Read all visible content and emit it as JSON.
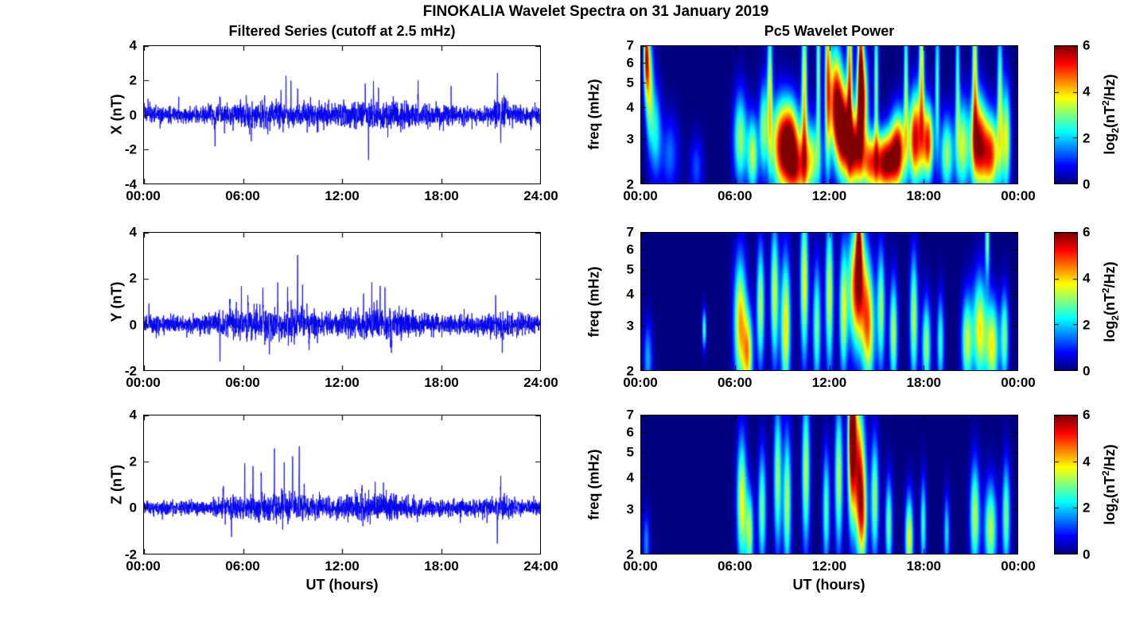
{
  "figure": {
    "title": "FINOKALIA Wavelet Spectra on 31 January 2019",
    "left_column_title": "Filtered Series (cutoff at 2.5 mHz)",
    "right_column_title": "Pc5 Wavelet Power",
    "x_axis_label": "UT (hours)",
    "background": "#FFFFFF"
  },
  "colorbar": {
    "label_prefix": "log",
    "label_sub": "2",
    "label_mid": "(nT",
    "label_sup": "2",
    "label_suffix": "/Hz)",
    "ticks": [
      6,
      4,
      2,
      0
    ],
    "clim": [
      0,
      6
    ],
    "colormap": "jet"
  },
  "colors": {
    "line": "#0000EE",
    "axis": "#000000",
    "heatmap_background": "#00008F"
  },
  "chart_data": [
    {
      "type": "line",
      "name": "X component filtered magnetometer series",
      "ylabel": "X (nT)",
      "xlim": [
        0,
        24
      ],
      "ylim": [
        -4,
        4
      ],
      "xticks": [
        0,
        6,
        12,
        18,
        24
      ],
      "xtick_labels": [
        "00:00",
        "06:00",
        "12:00",
        "18:00",
        "24:00"
      ],
      "yticks": [
        4,
        2,
        0,
        -2,
        -4
      ],
      "line_color": "#0000EE",
      "samples_per_hour": 120,
      "noise_envelope": [
        [
          0,
          0.22
        ],
        [
          3,
          0.22
        ],
        [
          4,
          0.28
        ],
        [
          5,
          0.34
        ],
        [
          7,
          0.36
        ],
        [
          10,
          0.38
        ],
        [
          11,
          0.3
        ],
        [
          12,
          0.34
        ],
        [
          14,
          0.4
        ],
        [
          16,
          0.38
        ],
        [
          17,
          0.3
        ],
        [
          19,
          0.26
        ],
        [
          21,
          0.26
        ],
        [
          21.3,
          0.45
        ],
        [
          21.8,
          0.42
        ],
        [
          22.3,
          0.3
        ],
        [
          24,
          0.26
        ]
      ],
      "spikes": [
        [
          0.25,
          0.9
        ],
        [
          2.1,
          0.8
        ],
        [
          4.3,
          -1.7
        ],
        [
          4.6,
          1.0
        ],
        [
          5.4,
          -1.2
        ],
        [
          6.2,
          1.5
        ],
        [
          6.5,
          -1.1
        ],
        [
          7.3,
          1.3
        ],
        [
          8.3,
          1.5
        ],
        [
          8.6,
          2.6
        ],
        [
          8.9,
          1.2
        ],
        [
          9.3,
          1.4
        ],
        [
          10.1,
          0.9
        ],
        [
          13.4,
          1.5
        ],
        [
          13.6,
          -2.3
        ],
        [
          13.9,
          1.7
        ],
        [
          14.2,
          1.2
        ],
        [
          15.1,
          0.9
        ],
        [
          16.6,
          1.5
        ],
        [
          18.6,
          1.1
        ],
        [
          21.4,
          2.2
        ],
        [
          21.6,
          -1.5
        ],
        [
          21.9,
          1.0
        ]
      ]
    },
    {
      "type": "line",
      "name": "Y component filtered magnetometer series",
      "ylabel": "Y (nT)",
      "xlim": [
        0,
        24
      ],
      "ylim": [
        -2,
        4
      ],
      "xticks": [
        0,
        6,
        12,
        18,
        24
      ],
      "xtick_labels": [
        "00:00",
        "06:00",
        "12:00",
        "18:00",
        "24:00"
      ],
      "yticks": [
        4,
        2,
        0,
        -2
      ],
      "line_color": "#0000EE",
      "samples_per_hour": 120,
      "noise_envelope": [
        [
          0,
          0.18
        ],
        [
          4,
          0.2
        ],
        [
          5,
          0.3
        ],
        [
          6,
          0.34
        ],
        [
          9,
          0.36
        ],
        [
          10,
          0.3
        ],
        [
          12,
          0.26
        ],
        [
          13,
          0.32
        ],
        [
          15,
          0.34
        ],
        [
          16,
          0.28
        ],
        [
          17,
          0.24
        ],
        [
          20,
          0.2
        ],
        [
          21,
          0.24
        ],
        [
          22,
          0.26
        ],
        [
          23,
          0.2
        ],
        [
          24,
          0.18
        ]
      ],
      "spikes": [
        [
          0.3,
          1.0
        ],
        [
          4.6,
          -1.6
        ],
        [
          5.2,
          1.2
        ],
        [
          5.9,
          1.5
        ],
        [
          6.3,
          1.4
        ],
        [
          7.2,
          1.8
        ],
        [
          7.6,
          -1.2
        ],
        [
          8.1,
          1.6
        ],
        [
          8.7,
          1.9
        ],
        [
          9.3,
          2.6
        ],
        [
          9.6,
          1.3
        ],
        [
          10.0,
          -1.1
        ],
        [
          13.3,
          1.1
        ],
        [
          13.8,
          1.5
        ],
        [
          14.3,
          1.7
        ],
        [
          14.6,
          1.2
        ],
        [
          15.0,
          -1.0
        ],
        [
          21.3,
          1.0
        ],
        [
          21.7,
          -1.3
        ]
      ]
    },
    {
      "type": "line",
      "name": "Z component filtered magnetometer series",
      "ylabel": "Z (nT)",
      "xlim": [
        0,
        24
      ],
      "ylim": [
        -2,
        4
      ],
      "xticks": [
        0,
        6,
        12,
        18,
        24
      ],
      "xtick_labels": [
        "00:00",
        "06:00",
        "12:00",
        "18:00",
        "24:00"
      ],
      "yticks": [
        4,
        2,
        0,
        -2
      ],
      "line_color": "#0000EE",
      "samples_per_hour": 120,
      "noise_envelope": [
        [
          0,
          0.15
        ],
        [
          4,
          0.16
        ],
        [
          5,
          0.24
        ],
        [
          6,
          0.28
        ],
        [
          9,
          0.3
        ],
        [
          10,
          0.26
        ],
        [
          12,
          0.22
        ],
        [
          13,
          0.28
        ],
        [
          15,
          0.28
        ],
        [
          16,
          0.22
        ],
        [
          17,
          0.18
        ],
        [
          20,
          0.16
        ],
        [
          21,
          0.22
        ],
        [
          21.8,
          0.3
        ],
        [
          22.5,
          0.18
        ],
        [
          24,
          0.16
        ]
      ],
      "spikes": [
        [
          4.8,
          1.0
        ],
        [
          5.3,
          -1.3
        ],
        [
          6.1,
          1.6
        ],
        [
          6.6,
          1.9
        ],
        [
          7.1,
          1.4
        ],
        [
          7.9,
          2.0
        ],
        [
          8.5,
          1.5
        ],
        [
          9.0,
          2.5
        ],
        [
          9.4,
          2.4
        ],
        [
          9.7,
          1.2
        ],
        [
          13.2,
          0.9
        ],
        [
          14.0,
          0.8
        ],
        [
          14.5,
          1.0
        ],
        [
          21.4,
          -1.5
        ],
        [
          21.6,
          1.2
        ]
      ]
    },
    {
      "type": "heatmap",
      "name": "X component Pc5 wavelet power",
      "ylabel": "freq (mHz)",
      "xlim": [
        0,
        24
      ],
      "ylim": [
        2,
        7
      ],
      "yscale": "log",
      "xticks": [
        0,
        6,
        12,
        18,
        24
      ],
      "xtick_labels": [
        "00:00",
        "06:00",
        "12:00",
        "18:00",
        "00:00"
      ],
      "yticks": [
        7,
        6,
        5,
        4,
        3,
        2
      ],
      "clim": [
        0,
        6
      ],
      "colormap": "jet",
      "blobs": [
        [
          0.3,
          6.5,
          0.12,
          0.25,
          4.6
        ],
        [
          0.5,
          4.8,
          0.18,
          0.35,
          3.2
        ],
        [
          0.9,
          3.2,
          0.25,
          0.3,
          2.2
        ],
        [
          1.8,
          2.6,
          0.4,
          0.25,
          1.4
        ],
        [
          3.5,
          2.3,
          0.3,
          0.2,
          1.2
        ],
        [
          6.3,
          3.0,
          0.3,
          0.3,
          3.2
        ],
        [
          7.1,
          2.6,
          0.25,
          0.25,
          3.4
        ],
        [
          7.8,
          3.3,
          0.2,
          0.3,
          3.0
        ],
        [
          8.2,
          4.8,
          0.12,
          0.5,
          3.4
        ],
        [
          8.8,
          2.8,
          0.4,
          0.3,
          4.2
        ],
        [
          9.5,
          3.0,
          0.4,
          0.25,
          5.2
        ],
        [
          9.8,
          2.2,
          0.5,
          0.2,
          3.6
        ],
        [
          10.4,
          4.8,
          0.13,
          0.55,
          3.8
        ],
        [
          10.8,
          2.5,
          0.5,
          0.25,
          3.4
        ],
        [
          11.3,
          5.5,
          0.1,
          0.5,
          3.2
        ],
        [
          11.9,
          5.3,
          0.13,
          0.6,
          4.0
        ],
        [
          12.4,
          4.2,
          0.3,
          0.35,
          5.4
        ],
        [
          12.9,
          3.2,
          0.3,
          0.3,
          5.8
        ],
        [
          13.3,
          5.6,
          0.12,
          0.55,
          4.4
        ],
        [
          13.6,
          2.7,
          0.35,
          0.25,
          5.6
        ],
        [
          14.0,
          5.9,
          0.12,
          0.5,
          4.2
        ],
        [
          14.1,
          4.4,
          0.25,
          0.3,
          5.0
        ],
        [
          14.6,
          2.4,
          0.4,
          0.2,
          4.4
        ],
        [
          15.0,
          5.0,
          0.1,
          0.5,
          3.2
        ],
        [
          15.6,
          2.4,
          0.45,
          0.2,
          5.8
        ],
        [
          16.4,
          2.7,
          0.35,
          0.25,
          5.4
        ],
        [
          16.9,
          5.2,
          0.1,
          0.5,
          3.0
        ],
        [
          17.5,
          3.0,
          0.3,
          0.3,
          5.6
        ],
        [
          17.9,
          5.8,
          0.12,
          0.5,
          3.8
        ],
        [
          18.3,
          2.9,
          0.25,
          0.25,
          5.2
        ],
        [
          18.9,
          5.0,
          0.1,
          0.45,
          2.8
        ],
        [
          19.5,
          2.6,
          0.3,
          0.25,
          3.2
        ],
        [
          20.2,
          5.4,
          0.1,
          0.45,
          2.6
        ],
        [
          20.5,
          2.8,
          0.3,
          0.3,
          3.4
        ],
        [
          21.3,
          5.9,
          0.12,
          0.5,
          3.6
        ],
        [
          21.5,
          2.9,
          0.35,
          0.3,
          5.4
        ],
        [
          22.3,
          2.6,
          0.4,
          0.25,
          5.0
        ],
        [
          22.9,
          4.5,
          0.12,
          0.5,
          3.0
        ],
        [
          23.3,
          3.0,
          0.2,
          0.35,
          3.6
        ]
      ]
    },
    {
      "type": "heatmap",
      "name": "Y component Pc5 wavelet power",
      "ylabel": "freq (mHz)",
      "xlim": [
        0,
        24
      ],
      "ylim": [
        2,
        7
      ],
      "yscale": "log",
      "xticks": [
        0,
        6,
        12,
        18,
        24
      ],
      "xtick_labels": [
        "00:00",
        "06:00",
        "12:00",
        "18:00",
        "00:00"
      ],
      "yticks": [
        7,
        6,
        5,
        4,
        3,
        2
      ],
      "clim": [
        0,
        6
      ],
      "colormap": "jet",
      "blobs": [
        [
          0.4,
          2.2,
          0.2,
          0.25,
          1.8
        ],
        [
          4.0,
          2.9,
          0.09,
          0.13,
          2.8
        ],
        [
          6.3,
          3.1,
          0.28,
          0.42,
          4.2
        ],
        [
          6.8,
          2.3,
          0.22,
          0.28,
          3.8
        ],
        [
          7.6,
          3.6,
          0.18,
          0.4,
          3.4
        ],
        [
          8.5,
          4.0,
          0.18,
          0.45,
          3.6
        ],
        [
          9.2,
          3.0,
          0.22,
          0.45,
          4.0
        ],
        [
          10.4,
          4.4,
          0.18,
          0.5,
          3.8
        ],
        [
          11.2,
          3.0,
          0.18,
          0.4,
          3.0
        ],
        [
          12.0,
          4.0,
          0.18,
          0.5,
          3.6
        ],
        [
          12.9,
          3.4,
          0.18,
          0.42,
          3.4
        ],
        [
          13.8,
          4.3,
          0.4,
          0.4,
          5.6
        ],
        [
          13.9,
          6.6,
          0.13,
          0.28,
          3.6
        ],
        [
          14.5,
          2.9,
          0.28,
          0.38,
          4.0
        ],
        [
          15.3,
          3.5,
          0.18,
          0.4,
          3.2
        ],
        [
          16.1,
          2.8,
          0.18,
          0.35,
          3.4
        ],
        [
          17.4,
          3.2,
          0.18,
          0.42,
          3.4
        ],
        [
          18.2,
          2.5,
          0.2,
          0.3,
          3.2
        ],
        [
          19.1,
          2.6,
          0.16,
          0.3,
          2.6
        ],
        [
          20.8,
          2.6,
          0.25,
          0.3,
          3.4
        ],
        [
          21.6,
          2.9,
          0.3,
          0.35,
          3.8
        ],
        [
          22.1,
          6.7,
          0.1,
          0.25,
          3.2
        ],
        [
          22.4,
          2.5,
          0.3,
          0.3,
          3.8
        ],
        [
          23.2,
          2.7,
          0.18,
          0.3,
          3.0
        ]
      ]
    },
    {
      "type": "heatmap",
      "name": "Z component Pc5 wavelet power",
      "ylabel": "freq (mHz)",
      "xlim": [
        0,
        24
      ],
      "ylim": [
        2,
        7
      ],
      "yscale": "log",
      "xticks": [
        0,
        6,
        12,
        18,
        24
      ],
      "xtick_labels": [
        "00:00",
        "06:00",
        "12:00",
        "18:00",
        "00:00"
      ],
      "yticks": [
        7,
        6,
        5,
        4,
        3,
        2
      ],
      "clim": [
        0,
        6
      ],
      "colormap": "jet",
      "blobs": [
        [
          0.3,
          2.2,
          0.15,
          0.2,
          1.6
        ],
        [
          6.4,
          3.2,
          0.22,
          0.42,
          3.8
        ],
        [
          6.9,
          2.4,
          0.18,
          0.28,
          3.2
        ],
        [
          7.7,
          3.0,
          0.18,
          0.38,
          3.0
        ],
        [
          8.7,
          4.0,
          0.18,
          0.48,
          3.2
        ],
        [
          9.3,
          3.2,
          0.18,
          0.45,
          3.4
        ],
        [
          10.5,
          4.2,
          0.18,
          0.5,
          3.4
        ],
        [
          11.8,
          3.0,
          0.16,
          0.38,
          2.8
        ],
        [
          12.6,
          4.0,
          0.18,
          0.48,
          3.4
        ],
        [
          13.4,
          5.4,
          0.16,
          0.5,
          4.0
        ],
        [
          13.5,
          6.8,
          0.13,
          0.22,
          3.4
        ],
        [
          13.8,
          4.5,
          0.3,
          0.45,
          4.8
        ],
        [
          14.1,
          2.8,
          0.22,
          0.35,
          3.8
        ],
        [
          14.9,
          3.3,
          0.18,
          0.4,
          3.2
        ],
        [
          15.8,
          2.6,
          0.16,
          0.3,
          3.0
        ],
        [
          17.1,
          2.3,
          0.18,
          0.28,
          3.8
        ],
        [
          18.0,
          2.6,
          0.13,
          0.3,
          2.6
        ],
        [
          19.5,
          2.4,
          0.13,
          0.25,
          2.2
        ],
        [
          21.3,
          2.8,
          0.22,
          0.35,
          3.4
        ],
        [
          22.3,
          2.5,
          0.28,
          0.3,
          3.4
        ],
        [
          23.3,
          2.8,
          0.18,
          0.35,
          3.0
        ]
      ]
    }
  ]
}
